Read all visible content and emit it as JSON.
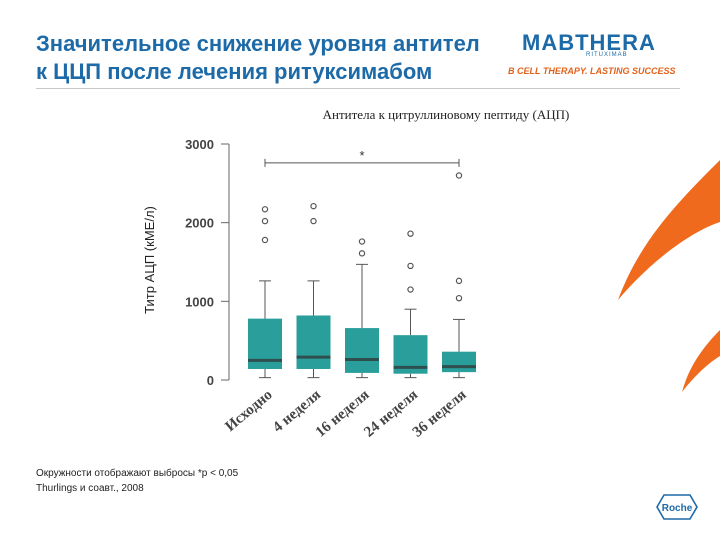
{
  "slide": {
    "title_line1": "Значительное снижение уровня антител",
    "title_line2": "к ЦЦП после лечения ритуксимабом"
  },
  "logo": {
    "brand": "MABTHERA",
    "brand_sub": "RITUXIMAB",
    "tagline": "B CELL THERAPY. LASTING SUCCESS"
  },
  "footnote": {
    "line1": "Окружности отображают выбросы *p < 0,05",
    "line2": "Thurlings и соавт., 2008"
  },
  "roche_logo": "Roche",
  "colors": {
    "accent_blue": "#1d6aa8",
    "box_fill": "#2a9e9b",
    "median": "#2f4f4f",
    "orange": "#f06a1e"
  },
  "chart_data": {
    "type": "box",
    "title": "Антитела к цитруллиновому пептиду (АЦП)",
    "ylabel": "Титр АЦП (кМЕ/л)",
    "xlabel": "",
    "ylim": [
      0,
      3000
    ],
    "yticks": [
      0,
      1000,
      2000,
      3000
    ],
    "grid": false,
    "categories": [
      "Исходно",
      "4 неделя",
      "16 неделя",
      "24 неделя",
      "36 неделя"
    ],
    "boxes": [
      {
        "whisker_low": 30,
        "q1": 140,
        "median": 250,
        "q3": 780,
        "whisker_high": 1260,
        "outliers": [
          1780,
          2020,
          2170
        ]
      },
      {
        "whisker_low": 30,
        "q1": 140,
        "median": 290,
        "q3": 820,
        "whisker_high": 1260,
        "outliers": [
          2020,
          2210
        ]
      },
      {
        "whisker_low": 30,
        "q1": 90,
        "median": 260,
        "q3": 660,
        "whisker_high": 1470,
        "outliers": [
          1610,
          1760
        ]
      },
      {
        "whisker_low": 30,
        "q1": 80,
        "median": 160,
        "q3": 570,
        "whisker_high": 900,
        "outliers": [
          1150,
          1450,
          1860
        ]
      },
      {
        "whisker_low": 30,
        "q1": 100,
        "median": 170,
        "q3": 360,
        "whisker_high": 770,
        "outliers": [
          1040,
          1260,
          2600
        ]
      }
    ],
    "significance": {
      "from": 0,
      "to": 4,
      "label": "*",
      "y": 2760
    }
  }
}
